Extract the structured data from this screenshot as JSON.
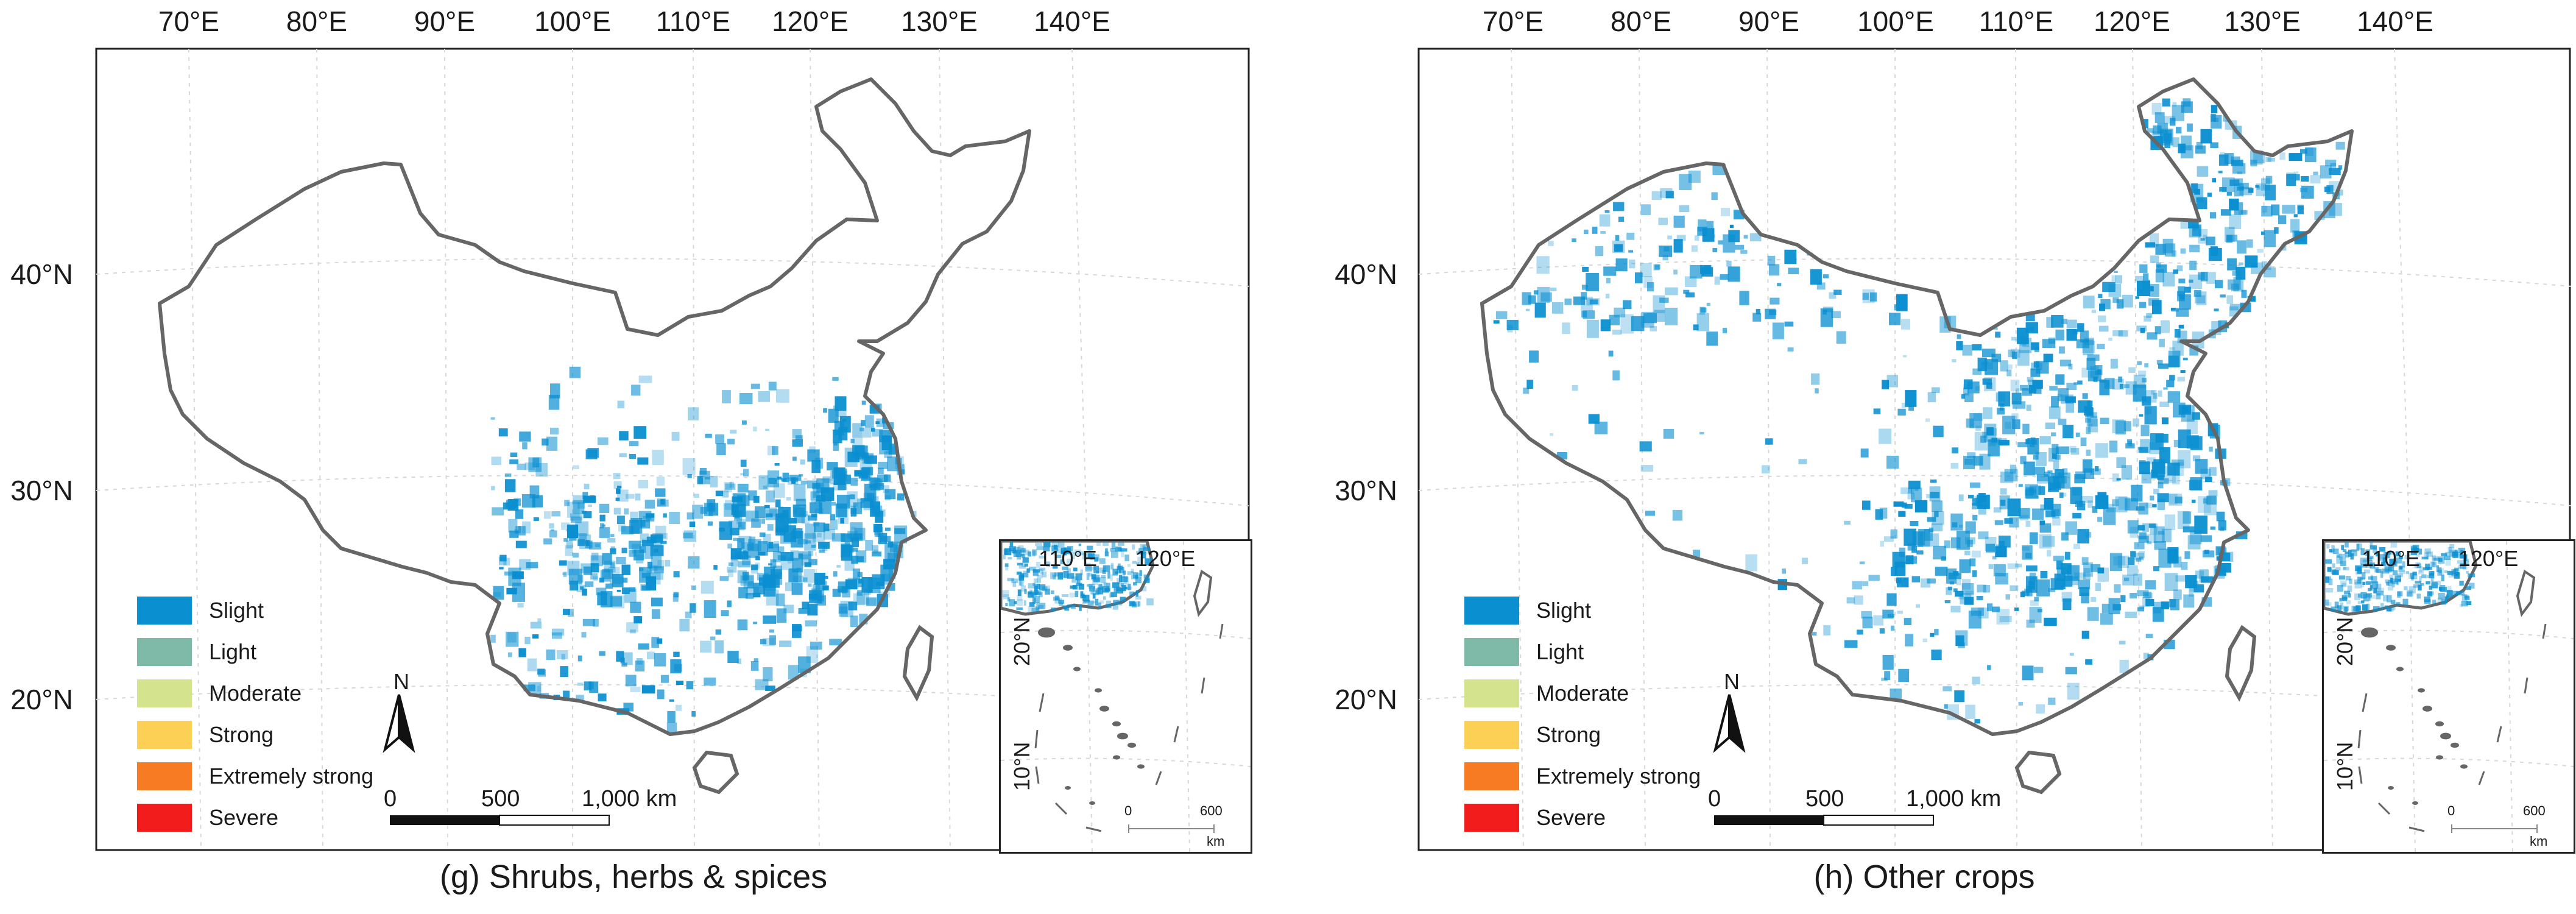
{
  "colors": {
    "slight": "#0a8fd1",
    "light": "#7fb9a7",
    "moderate": "#d4e48e",
    "strong": "#fccf55",
    "extremely_strong": "#f77b23",
    "severe": "#f21c1c",
    "boundary": "#666666",
    "graticule": "#d8d8d8"
  },
  "longitude_labels": [
    "70°E",
    "80°E",
    "90°E",
    "100°E",
    "110°E",
    "120°E",
    "130°E",
    "140°E"
  ],
  "latitude_labels": [
    "40°N",
    "30°N",
    "20°N"
  ],
  "legend": [
    {
      "label": "Slight",
      "color": "#0a8fd1"
    },
    {
      "label": "Light",
      "color": "#7fb9a7"
    },
    {
      "label": "Moderate",
      "color": "#d4e48e"
    },
    {
      "label": "Strong",
      "color": "#fccf55"
    },
    {
      "label": "Extremely strong",
      "color": "#f77b23"
    },
    {
      "label": "Severe",
      "color": "#f21c1c"
    }
  ],
  "north_arrow": "N",
  "scale_bar": {
    "ticks": [
      "0",
      "500",
      "1,000 km"
    ]
  },
  "inset": {
    "lon_labels": [
      "110°E",
      "120°E"
    ],
    "lat_labels": [
      "20°N",
      "10°N"
    ],
    "scale_ticks": [
      "0",
      "600"
    ],
    "scale_unit": "km"
  },
  "panels": [
    {
      "caption": "(g) Shrubs, herbs & spices",
      "coverage": "low"
    },
    {
      "caption": "(h) Other crops",
      "coverage": "high"
    }
  ]
}
